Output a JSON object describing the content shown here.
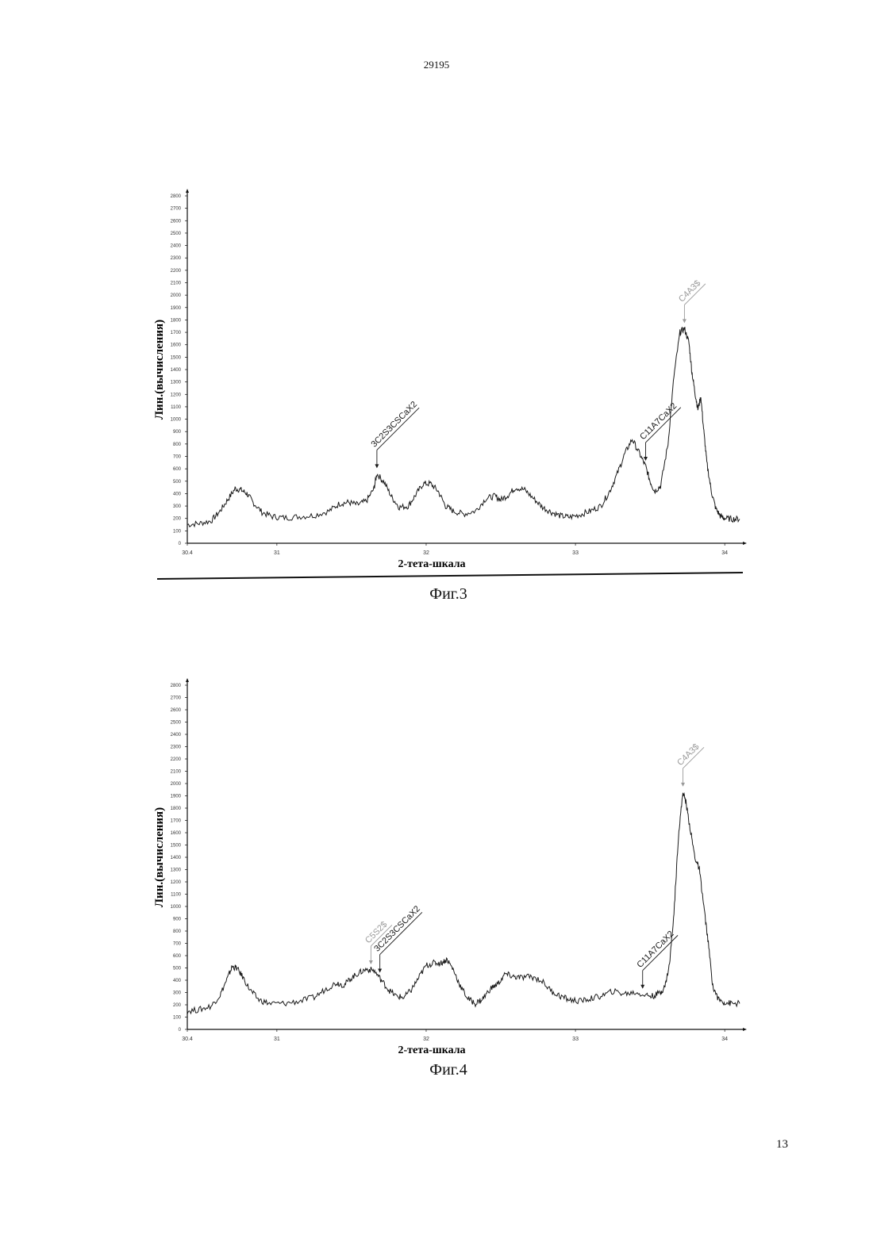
{
  "document": {
    "number": "29195",
    "page": "13"
  },
  "chart_data": [
    {
      "type": "line",
      "caption": "Фиг.3",
      "xlabel": "2-тета-шкала",
      "ylabel": "Лин.(вычисления)",
      "xlim": [
        30.4,
        34.1
      ],
      "ylim": [
        0,
        2800
      ],
      "xticks": [
        {
          "v": 30.4,
          "label": "30.4"
        },
        {
          "v": 31,
          "label": "31"
        },
        {
          "v": 32,
          "label": "32"
        },
        {
          "v": 33,
          "label": "33"
        },
        {
          "v": 34,
          "label": "34"
        }
      ],
      "yticks": [
        "0",
        "100",
        "200",
        "300",
        "400",
        "500",
        "600",
        "700",
        "800",
        "900",
        "1000",
        "1100",
        "1200",
        "1300",
        "1400",
        "1500",
        "1600",
        "1700",
        "1800",
        "1900",
        "2000",
        "2100",
        "2200",
        "2300",
        "2400",
        "2500",
        "2600",
        "2700",
        "2800"
      ],
      "series": [
        {
          "color": "#1a1a1a",
          "x": [
            30.4,
            30.48,
            30.56,
            30.62,
            30.67,
            30.72,
            30.76,
            30.8,
            30.84,
            30.9,
            30.97,
            31.05,
            31.15,
            31.25,
            31.35,
            31.42,
            31.48,
            31.54,
            31.6,
            31.65,
            31.67,
            31.72,
            31.77,
            31.82,
            31.88,
            31.93,
            31.98,
            32.03,
            32.08,
            32.13,
            32.18,
            32.25,
            32.33,
            32.4,
            32.46,
            32.5,
            32.55,
            32.6,
            32.66,
            32.72,
            32.78,
            32.84,
            32.9,
            32.96,
            33.03,
            33.1,
            33.17,
            33.23,
            33.28,
            33.33,
            33.38,
            33.43,
            33.47,
            33.5,
            33.53,
            33.57,
            33.62,
            33.66,
            33.7,
            33.73,
            33.76,
            33.78,
            33.8,
            33.82,
            33.84,
            33.86,
            33.88,
            33.91,
            33.94,
            33.97,
            34.0,
            34.05,
            34.1
          ],
          "y": [
            150,
            160,
            180,
            260,
            350,
            440,
            430,
            400,
            330,
            250,
            215,
            205,
            215,
            225,
            260,
            320,
            330,
            310,
            340,
            440,
            560,
            490,
            370,
            290,
            300,
            390,
            480,
            480,
            420,
            300,
            260,
            235,
            260,
            360,
            380,
            350,
            390,
            450,
            430,
            360,
            290,
            250,
            220,
            210,
            230,
            260,
            300,
            420,
            560,
            720,
            840,
            720,
            620,
            500,
            420,
            460,
            800,
            1350,
            1700,
            1730,
            1620,
            1380,
            1220,
            1080,
            1180,
            900,
            650,
            420,
            280,
            220,
            200,
            195,
            195
          ]
        }
      ],
      "annotations": [
        {
          "text": "3C2S3CSCaX2",
          "x": 31.67,
          "color": "#1a1a1a"
        },
        {
          "text": "C11A7CaX2",
          "x": 33.47,
          "color": "#1a1a1a"
        },
        {
          "text": "C4A3$",
          "x": 33.73,
          "color": "#9a9a9a"
        }
      ]
    },
    {
      "type": "line",
      "caption": "Фиг.4",
      "xlabel": "2-тета-шкала",
      "ylabel": "Лин.(вычисления)",
      "xlim": [
        30.4,
        34.1
      ],
      "ylim": [
        0,
        2800
      ],
      "xticks": [
        {
          "v": 30.4,
          "label": "30.4"
        },
        {
          "v": 31,
          "label": "31"
        },
        {
          "v": 32,
          "label": "32"
        },
        {
          "v": 33,
          "label": "33"
        },
        {
          "v": 34,
          "label": "34"
        }
      ],
      "yticks": [
        "0",
        "100",
        "200",
        "300",
        "400",
        "500",
        "600",
        "700",
        "800",
        "900",
        "1000",
        "1100",
        "1200",
        "1300",
        "1400",
        "1500",
        "1600",
        "1700",
        "1800",
        "1900",
        "2000",
        "2100",
        "2200",
        "2300",
        "2400",
        "2500",
        "2600",
        "2700",
        "2800"
      ],
      "series": [
        {
          "color": "#1a1a1a",
          "x": [
            30.4,
            30.48,
            30.56,
            30.62,
            30.67,
            30.7,
            30.73,
            30.77,
            30.82,
            30.88,
            30.95,
            31.05,
            31.15,
            31.25,
            31.33,
            31.4,
            31.45,
            31.5,
            31.55,
            31.6,
            31.65,
            31.7,
            31.75,
            31.8,
            31.85,
            31.9,
            31.95,
            32.0,
            32.05,
            32.1,
            32.14,
            32.18,
            32.23,
            32.28,
            32.33,
            32.38,
            32.43,
            32.48,
            32.53,
            32.58,
            32.63,
            32.7,
            32.77,
            32.84,
            32.9,
            32.96,
            33.03,
            33.1,
            33.17,
            33.25,
            33.33,
            33.4,
            33.47,
            33.52,
            33.57,
            33.6,
            33.63,
            33.66,
            33.69,
            33.72,
            33.74,
            33.77,
            33.8,
            33.83,
            33.86,
            33.89,
            33.92,
            33.96,
            34.0,
            34.05,
            34.1
          ],
          "y": [
            150,
            160,
            190,
            280,
            420,
            510,
            500,
            430,
            320,
            240,
            210,
            210,
            230,
            260,
            330,
            380,
            360,
            420,
            460,
            490,
            480,
            400,
            320,
            270,
            260,
            320,
            420,
            520,
            540,
            540,
            570,
            490,
            350,
            250,
            210,
            250,
            330,
            370,
            450,
            430,
            420,
            430,
            400,
            310,
            270,
            240,
            230,
            250,
            270,
            310,
            290,
            300,
            280,
            270,
            300,
            350,
            530,
            950,
            1580,
            1930,
            1850,
            1620,
            1400,
            1300,
            1000,
            700,
            350,
            240,
            220,
            210,
            210
          ]
        }
      ],
      "annotations": [
        {
          "text": "C5S2$",
          "x": 31.63,
          "color": "#9a9a9a"
        },
        {
          "text": "3C2S3CSCaX2",
          "x": 31.69,
          "color": "#1a1a1a"
        },
        {
          "text": "C11A7CaX2",
          "x": 33.45,
          "color": "#1a1a1a"
        },
        {
          "text": "C4A3$",
          "x": 33.72,
          "color": "#9a9a9a"
        }
      ]
    }
  ]
}
